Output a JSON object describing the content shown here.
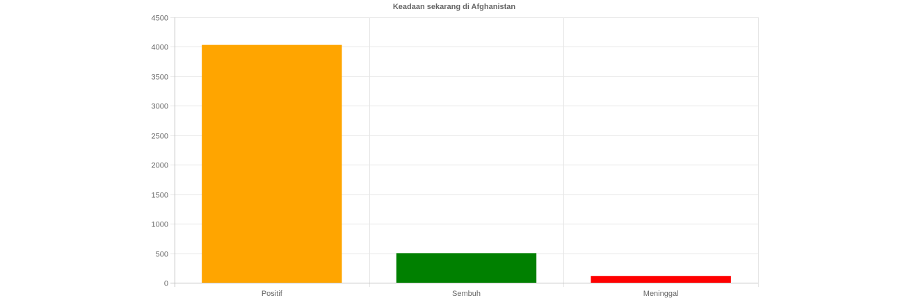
{
  "chart_data": {
    "type": "bar",
    "title": "Keadaan sekarang di Afghanistan",
    "categories": [
      "Positif",
      "Sembuh",
      "Meninggal"
    ],
    "values": [
      4033,
      502,
      115
    ],
    "colors": [
      "#ffa500",
      "#008000",
      "#ff0000"
    ],
    "ylim": [
      0,
      4500
    ],
    "yticks": [
      0,
      500,
      1000,
      1500,
      2000,
      2500,
      3000,
      3500,
      4000,
      4500
    ],
    "xlabel": "",
    "ylabel": "",
    "grid": true,
    "legend": "none"
  }
}
